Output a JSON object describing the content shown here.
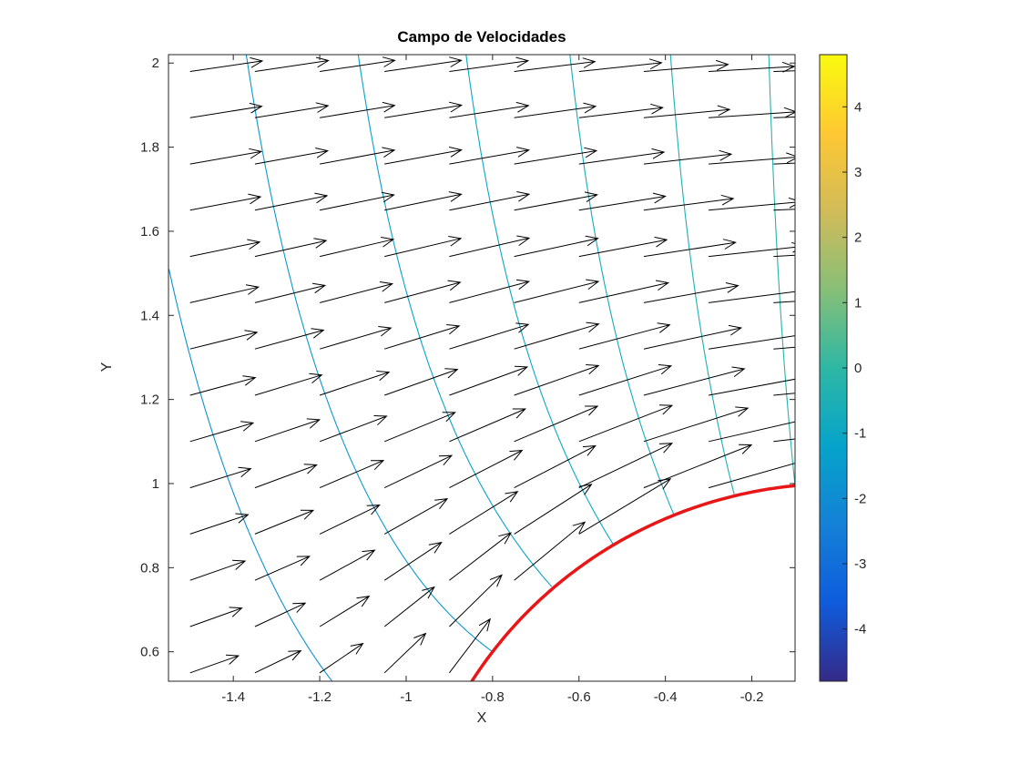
{
  "chart_data": {
    "type": "quiver",
    "title": "Campo de Velocidades",
    "xlabel": "X",
    "ylabel": "Y",
    "xlim": [
      -1.55,
      -0.1
    ],
    "ylim": [
      0.53,
      2.02
    ],
    "x_ticks": [
      -1.4,
      -1.2,
      -1.0,
      -0.8,
      -0.6,
      -0.4,
      -0.2
    ],
    "x_tick_labels": [
      "-1.4",
      "-1.2",
      "-1",
      "-0.8",
      "-0.6",
      "-0.4",
      "-0.2"
    ],
    "y_ticks": [
      0.6,
      0.8,
      1.0,
      1.2,
      1.4,
      1.6,
      1.8,
      2.0
    ],
    "y_tick_labels": [
      "0.6",
      "0.8",
      "1",
      "1.2",
      "1.4",
      "1.6",
      "1.8",
      "2"
    ],
    "grid": false,
    "model": {
      "description": "potential flow around a circular cylinder (velocity arrows + equipotential contour lines)",
      "U": 1,
      "R": 1,
      "center": [
        0,
        0
      ]
    },
    "quiver_grid": {
      "x0": -1.5,
      "dx": 0.15,
      "nx": 10,
      "y0": 0.55,
      "dy": 0.11,
      "ny": 14
    },
    "arrow_scale": 0.16,
    "contour_levels": [
      -1.88,
      -1.6,
      -1.32,
      -1.04,
      -0.76,
      -0.48,
      -0.2
    ],
    "cylinder_boundary": {
      "radius": 1,
      "color": "#e81616",
      "width": 3.5
    },
    "colors": {
      "arrow": "#000000",
      "axis": "#262626",
      "parula": [
        "#352a87",
        "#0f5cdd",
        "#1481d6",
        "#06a4ca",
        "#2eb7a4",
        "#87bf77",
        "#d1bb59",
        "#fec832",
        "#f9fb0e"
      ]
    },
    "colorbar": {
      "min": -4.8,
      "max": 4.8,
      "ticks": [
        4,
        3,
        2,
        1,
        0,
        -1,
        -2,
        -3,
        -4
      ],
      "tick_labels": [
        "4",
        "3",
        "2",
        "1",
        "0",
        "-1",
        "-2",
        "-3",
        "-4"
      ],
      "position": "right"
    }
  }
}
